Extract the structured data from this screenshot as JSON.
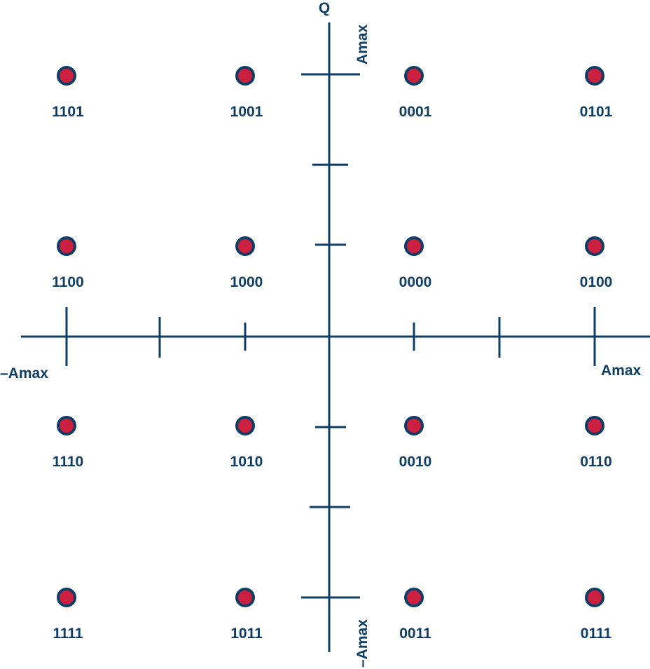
{
  "diagram": {
    "type": "16-QAM constellation",
    "q_axis_label": "Q",
    "amax_label": "Amax",
    "neg_amax_label": "–Amax",
    "colors": {
      "axis": "#0e3d66",
      "point_fill": "#cc2040",
      "point_stroke": "#0e3d66",
      "label": "#0e3d66"
    },
    "points": [
      {
        "code": "1101",
        "i": -3,
        "q": 3
      },
      {
        "code": "1001",
        "i": -1,
        "q": 3
      },
      {
        "code": "0001",
        "i": 1,
        "q": 3
      },
      {
        "code": "0101",
        "i": 3,
        "q": 3
      },
      {
        "code": "1100",
        "i": -3,
        "q": 1
      },
      {
        "code": "1000",
        "i": -1,
        "q": 1
      },
      {
        "code": "0000",
        "i": 1,
        "q": 1
      },
      {
        "code": "0100",
        "i": 3,
        "q": 1
      },
      {
        "code": "1110",
        "i": -3,
        "q": -1
      },
      {
        "code": "1010",
        "i": -1,
        "q": -1
      },
      {
        "code": "0010",
        "i": 1,
        "q": -1
      },
      {
        "code": "0110",
        "i": 3,
        "q": -1
      },
      {
        "code": "1111",
        "i": -3,
        "q": -3
      },
      {
        "code": "1011",
        "i": -1,
        "q": -3
      },
      {
        "code": "0011",
        "i": 1,
        "q": -3
      },
      {
        "code": "0111",
        "i": 3,
        "q": -3
      }
    ]
  }
}
